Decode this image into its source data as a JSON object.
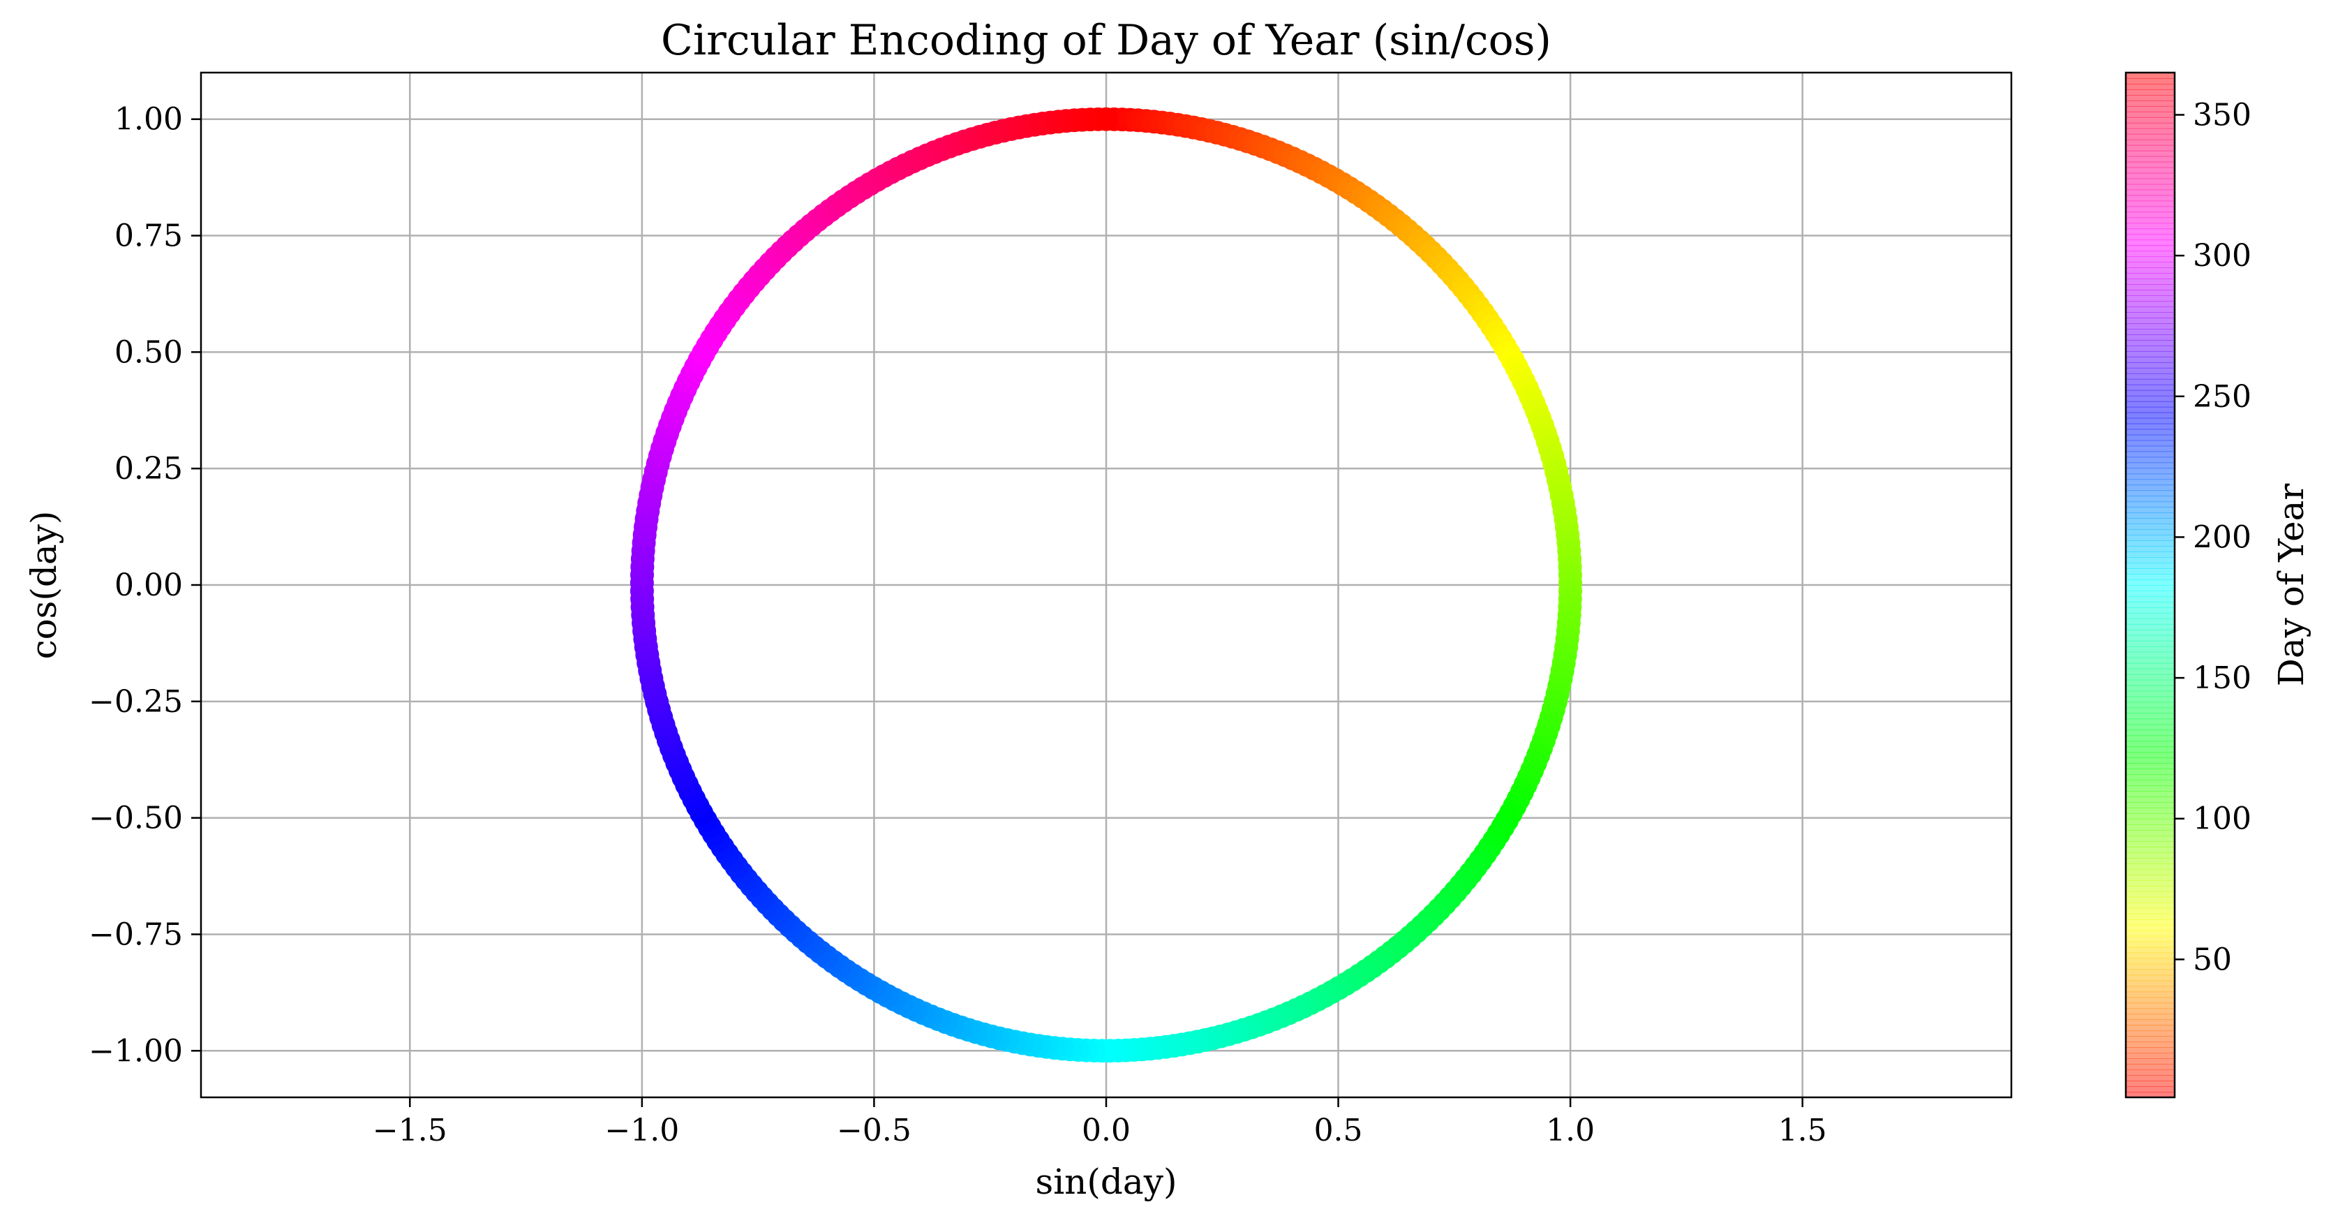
{
  "chart_data": {
    "type": "scatter",
    "title": "Circular Encoding of Day of Year (sin/cos)",
    "xlabel": "sin(day)",
    "ylabel": "cos(day)",
    "xlim": [
      -1.95,
      1.95
    ],
    "ylim": [
      -1.1,
      1.1
    ],
    "xticks": [
      -1.5,
      -1.0,
      -0.5,
      0.0,
      0.5,
      1.0,
      1.5
    ],
    "xtick_labels": [
      "−1.5",
      "−1.0",
      "−0.5",
      "0.0",
      "0.5",
      "1.0",
      "1.5"
    ],
    "yticks": [
      1.0,
      0.75,
      0.5,
      0.25,
      0.0,
      -0.25,
      -0.5,
      -0.75,
      -1.0
    ],
    "ytick_labels": [
      "1.00",
      "0.75",
      "0.50",
      "0.25",
      "0.00",
      "−0.25",
      "−0.50",
      "−0.75",
      "−1.00"
    ],
    "grid": true,
    "points": {
      "day_range": [
        1,
        365
      ],
      "x_formula": "sin(2*pi*day/365)",
      "y_formula": "cos(2*pi*day/365)",
      "colormap": "hsv"
    },
    "colorbar": {
      "label": "Day of Year",
      "range": [
        1,
        365
      ],
      "ticks": [
        50,
        100,
        150,
        200,
        250,
        300,
        350
      ],
      "tick_labels": [
        "50",
        "100",
        "150",
        "200",
        "250",
        "300",
        "350"
      ],
      "colormap": "hsv",
      "alpha": 0.5
    }
  }
}
